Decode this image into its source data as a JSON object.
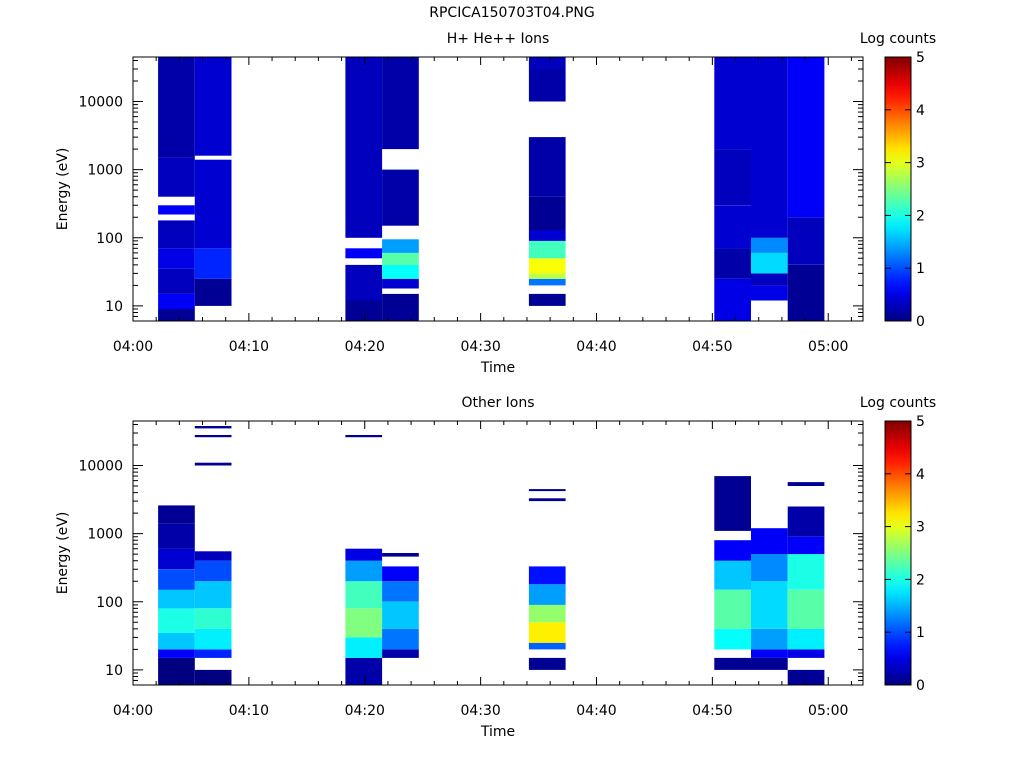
{
  "file_title": "RPCICA150703T04.PNG",
  "colorbar": {
    "label": "Log counts",
    "ticks": [
      "0",
      "1",
      "2",
      "3",
      "4",
      "5"
    ],
    "range": [
      0,
      5
    ],
    "colormap": "jet"
  },
  "chart_data": [
    {
      "type": "heatmap",
      "title": "H+ He++ Ions",
      "xlabel": "Time",
      "ylabel": "Energy (eV)",
      "x_ticks": [
        "04:00",
        "04:10",
        "04:20",
        "04:30",
        "04:40",
        "04:50",
        "05:00"
      ],
      "xlim": [
        "04:00",
        "05:03"
      ],
      "y_scale": "log",
      "ylim": [
        6,
        45000
      ],
      "y_ticks": [
        "10",
        "100",
        "1000",
        "10000"
      ],
      "columns": [
        {
          "start": "04:02:10",
          "end": "04:05:20",
          "bands": [
            [
              6,
              9,
              0.1
            ],
            [
              9,
              15,
              0.6
            ],
            [
              15,
              35,
              0.3
            ],
            [
              35,
              70,
              0.5
            ],
            [
              70,
              180,
              0.3
            ],
            [
              180,
              220,
              -1
            ],
            [
              220,
              300,
              0.6
            ],
            [
              300,
              400,
              -1
            ],
            [
              400,
              1500,
              0.3
            ],
            [
              1500,
              45000,
              0.2
            ]
          ]
        },
        {
          "start": "04:05:20",
          "end": "04:08:30",
          "bands": [
            [
              10,
              25,
              0.1
            ],
            [
              25,
              70,
              0.8
            ],
            [
              70,
              1400,
              0.4
            ],
            [
              1400,
              1600,
              -1
            ],
            [
              1600,
              45000,
              0.4
            ]
          ]
        },
        {
          "start": "04:18:20",
          "end": "04:21:30",
          "bands": [
            [
              6,
              12,
              0.1
            ],
            [
              12,
              40,
              0.3
            ],
            [
              40,
              50,
              -1
            ],
            [
              50,
              70,
              0.6
            ],
            [
              70,
              100,
              -1
            ],
            [
              100,
              45000,
              0.3
            ]
          ]
        },
        {
          "start": "04:21:30",
          "end": "04:24:40",
          "bands": [
            [
              6,
              15,
              0.1
            ],
            [
              15,
              18,
              -1
            ],
            [
              18,
              25,
              0.4
            ],
            [
              25,
              40,
              1.9
            ],
            [
              40,
              60,
              2.3
            ],
            [
              60,
              95,
              1.4
            ],
            [
              95,
              150,
              -1
            ],
            [
              150,
              1000,
              0.2
            ],
            [
              1000,
              2000,
              -1
            ],
            [
              2000,
              45000,
              0.2
            ]
          ]
        },
        {
          "start": "04:34:10",
          "end": "04:37:20",
          "bands": [
            [
              10,
              15,
              0.1
            ],
            [
              15,
              20,
              -1
            ],
            [
              20,
              25,
              1.2
            ],
            [
              25,
              30,
              2.8
            ],
            [
              30,
              50,
              3.1
            ],
            [
              50,
              90,
              2.2
            ],
            [
              90,
              130,
              0.4
            ],
            [
              130,
              400,
              0.1
            ],
            [
              400,
              3000,
              0.2
            ],
            [
              3000,
              10000,
              -1
            ],
            [
              10000,
              30000,
              0.2
            ],
            [
              30000,
              45000,
              0.3
            ]
          ]
        },
        {
          "start": "04:50:10",
          "end": "04:53:20",
          "bands": [
            [
              6,
              25,
              0.5
            ],
            [
              25,
              70,
              0.2
            ],
            [
              70,
              300,
              0.4
            ],
            [
              300,
              2000,
              0.3
            ],
            [
              2000,
              45000,
              0.4
            ]
          ]
        },
        {
          "start": "04:53:20",
          "end": "04:56:30",
          "bands": [
            [
              6,
              12,
              -1
            ],
            [
              12,
              20,
              0.5
            ],
            [
              20,
              30,
              0.3
            ],
            [
              30,
              60,
              1.7
            ],
            [
              60,
              100,
              1.3
            ],
            [
              100,
              45000,
              0.4
            ]
          ]
        },
        {
          "start": "04:56:30",
          "end": "04:59:40",
          "bands": [
            [
              6,
              40,
              0.1
            ],
            [
              40,
              200,
              0.3
            ],
            [
              200,
              45000,
              0.6
            ]
          ]
        }
      ]
    },
    {
      "type": "heatmap",
      "title": "Other Ions",
      "xlabel": "Time",
      "ylabel": "Energy (eV)",
      "x_ticks": [
        "04:00",
        "04:10",
        "04:20",
        "04:30",
        "04:40",
        "04:50",
        "05:00"
      ],
      "xlim": [
        "04:00",
        "05:03"
      ],
      "y_scale": "log",
      "ylim": [
        6,
        45000
      ],
      "y_ticks": [
        "10",
        "100",
        "1000",
        "10000"
      ],
      "columns": [
        {
          "start": "04:02:10",
          "end": "04:05:20",
          "bands": [
            [
              6,
              15,
              0.0
            ],
            [
              15,
              20,
              0.6
            ],
            [
              20,
              35,
              1.6
            ],
            [
              35,
              80,
              2.0
            ],
            [
              80,
              150,
              1.6
            ],
            [
              150,
              300,
              1.0
            ],
            [
              300,
              600,
              0.4
            ],
            [
              600,
              1400,
              0.2
            ],
            [
              1400,
              2600,
              0.1
            ]
          ]
        },
        {
          "start": "04:05:20",
          "end": "04:08:30",
          "bands": [
            [
              6,
              10,
              0.0
            ],
            [
              10,
              15,
              -1
            ],
            [
              15,
              20,
              0.8
            ],
            [
              20,
              40,
              1.8
            ],
            [
              40,
              80,
              2.1
            ],
            [
              80,
              200,
              1.6
            ],
            [
              200,
              400,
              1.0
            ],
            [
              400,
              550,
              0.3
            ],
            [
              10000,
              11000,
              0.1
            ],
            [
              26000,
              28000,
              0.1
            ],
            [
              35000,
              38000,
              0.1
            ]
          ]
        },
        {
          "start": "04:18:20",
          "end": "04:21:30",
          "bands": [
            [
              6,
              15,
              0.2
            ],
            [
              15,
              30,
              1.8
            ],
            [
              30,
              80,
              2.5
            ],
            [
              80,
              200,
              2.2
            ],
            [
              200,
              400,
              1.4
            ],
            [
              400,
              600,
              0.5
            ],
            [
              26000,
              28000,
              0.1
            ]
          ]
        },
        {
          "start": "04:21:30",
          "end": "04:24:40",
          "bands": [
            [
              15,
              20,
              0.2
            ],
            [
              20,
              40,
              1.2
            ],
            [
              40,
              100,
              1.6
            ],
            [
              100,
              200,
              1.2
            ],
            [
              200,
              330,
              0.6
            ],
            [
              460,
              520,
              0.1
            ]
          ]
        },
        {
          "start": "04:34:10",
          "end": "04:37:20",
          "bands": [
            [
              10,
              15,
              0.1
            ],
            [
              20,
              25,
              1.1
            ],
            [
              25,
              50,
              3.2
            ],
            [
              50,
              90,
              2.6
            ],
            [
              90,
              180,
              1.4
            ],
            [
              180,
              330,
              0.7
            ],
            [
              3000,
              3300,
              0.1
            ],
            [
              4200,
              4500,
              0.1
            ]
          ]
        },
        {
          "start": "04:50:10",
          "end": "04:53:20",
          "bands": [
            [
              10,
              15,
              0.1
            ],
            [
              20,
              40,
              1.9
            ],
            [
              40,
              150,
              2.3
            ],
            [
              150,
              400,
              1.6
            ],
            [
              400,
              800,
              0.6
            ],
            [
              1100,
              7000,
              0.1
            ]
          ]
        },
        {
          "start": "04:53:20",
          "end": "04:56:30",
          "bands": [
            [
              10,
              15,
              0.1
            ],
            [
              15,
              20,
              0.6
            ],
            [
              20,
              40,
              1.4
            ],
            [
              40,
              200,
              1.7
            ],
            [
              200,
              500,
              1.3
            ],
            [
              500,
              1200,
              0.6
            ]
          ]
        },
        {
          "start": "04:56:30",
          "end": "04:59:40",
          "bands": [
            [
              6,
              10,
              0.1
            ],
            [
              10,
              15,
              -1
            ],
            [
              15,
              20,
              0.5
            ],
            [
              20,
              40,
              1.8
            ],
            [
              40,
              150,
              2.3
            ],
            [
              150,
              500,
              2.0
            ],
            [
              500,
              900,
              0.6
            ],
            [
              900,
              2500,
              0.2
            ],
            [
              5000,
              5700,
              0.1
            ]
          ]
        }
      ]
    }
  ]
}
